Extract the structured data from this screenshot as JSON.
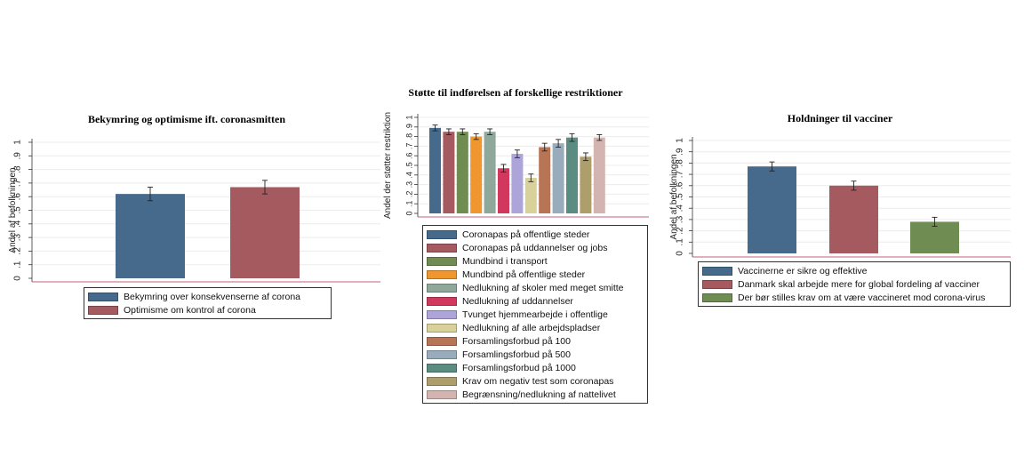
{
  "chart_data": [
    {
      "type": "bar",
      "title": "Bekymring og optimisme ift. coronasmitten",
      "ylabel": "Andel af befolkningen",
      "ylim": [
        0,
        1
      ],
      "yticks": [
        "0",
        ".1",
        ".2",
        ".3",
        ".4",
        ".5",
        ".6",
        ".7",
        ".8",
        ".9",
        "1"
      ],
      "grid": true,
      "legend": "bottom",
      "series": [
        {
          "name": "Bekymring over konsekvenserne af corona",
          "value": 0.62,
          "err": 0.05,
          "color": "#466a8c"
        },
        {
          "name": "Optimisme om kontrol af corona",
          "value": 0.67,
          "err": 0.05,
          "color": "#a45a5f"
        }
      ]
    },
    {
      "type": "bar",
      "title": "Støtte til indførelsen af forskellige restriktioner",
      "ylabel": "Andel der støtter restriktion",
      "ylim": [
        0,
        1
      ],
      "yticks": [
        "0",
        ".1",
        ".2",
        ".3",
        ".4",
        ".5",
        ".6",
        ".7",
        ".8",
        ".9",
        "1"
      ],
      "grid": true,
      "legend": "bottom",
      "series": [
        {
          "name": "Coronapas på offentlige steder",
          "value": 0.89,
          "err": 0.03,
          "color": "#466a8c"
        },
        {
          "name": "Coronapas på uddannelser og jobs",
          "value": 0.85,
          "err": 0.03,
          "color": "#a45a5f"
        },
        {
          "name": "Mundbind i transport",
          "value": 0.85,
          "err": 0.03,
          "color": "#6f8c52"
        },
        {
          "name": "Mundbind på offentlige steder",
          "value": 0.8,
          "err": 0.03,
          "color": "#f0962e"
        },
        {
          "name": "Nedlukning af skoler med meget smitte",
          "value": 0.85,
          "err": 0.03,
          "color": "#8ea89c"
        },
        {
          "name": "Nedlukning af uddannelser",
          "value": 0.47,
          "err": 0.04,
          "color": "#d2385e"
        },
        {
          "name": "Tvunget hjemmearbejde i offentlige",
          "value": 0.62,
          "err": 0.04,
          "color": "#ada4da"
        },
        {
          "name": "Nedlukning af alle arbejdspladser",
          "value": 0.37,
          "err": 0.04,
          "color": "#d8d29a"
        },
        {
          "name": "Forsamlingsforbud på 100",
          "value": 0.69,
          "err": 0.04,
          "color": "#b87556"
        },
        {
          "name": "Forsamlingsforbud på 500",
          "value": 0.73,
          "err": 0.04,
          "color": "#98acbc"
        },
        {
          "name": "Forsamlingsforbud på 1000",
          "value": 0.79,
          "err": 0.04,
          "color": "#5a8c82"
        },
        {
          "name": "Krav om negativ test som coronapas",
          "value": 0.59,
          "err": 0.04,
          "color": "#ad9e6c"
        },
        {
          "name": "Begrænsning/nedlukning af nattelivet",
          "value": 0.79,
          "err": 0.03,
          "color": "#d3b4b0"
        }
      ]
    },
    {
      "type": "bar",
      "title": "Holdninger til vacciner",
      "ylabel": "Andel af befolkningen",
      "ylim": [
        0,
        1
      ],
      "yticks": [
        "0",
        ".1",
        ".2",
        ".3",
        ".4",
        ".5",
        ".6",
        ".7",
        ".8",
        ".9",
        "1"
      ],
      "grid": true,
      "legend": "bottom",
      "series": [
        {
          "name": "Vaccinerne er sikre og effektive",
          "value": 0.77,
          "err": 0.04,
          "color": "#466a8c"
        },
        {
          "name": "Danmark skal arbejde mere for global fordeling af vacciner",
          "value": 0.6,
          "err": 0.04,
          "color": "#a45a5f"
        },
        {
          "name": "Der bør stilles krav om at være vaccineret mod corona-virus",
          "value": 0.28,
          "err": 0.04,
          "color": "#6f8c52"
        }
      ]
    }
  ]
}
